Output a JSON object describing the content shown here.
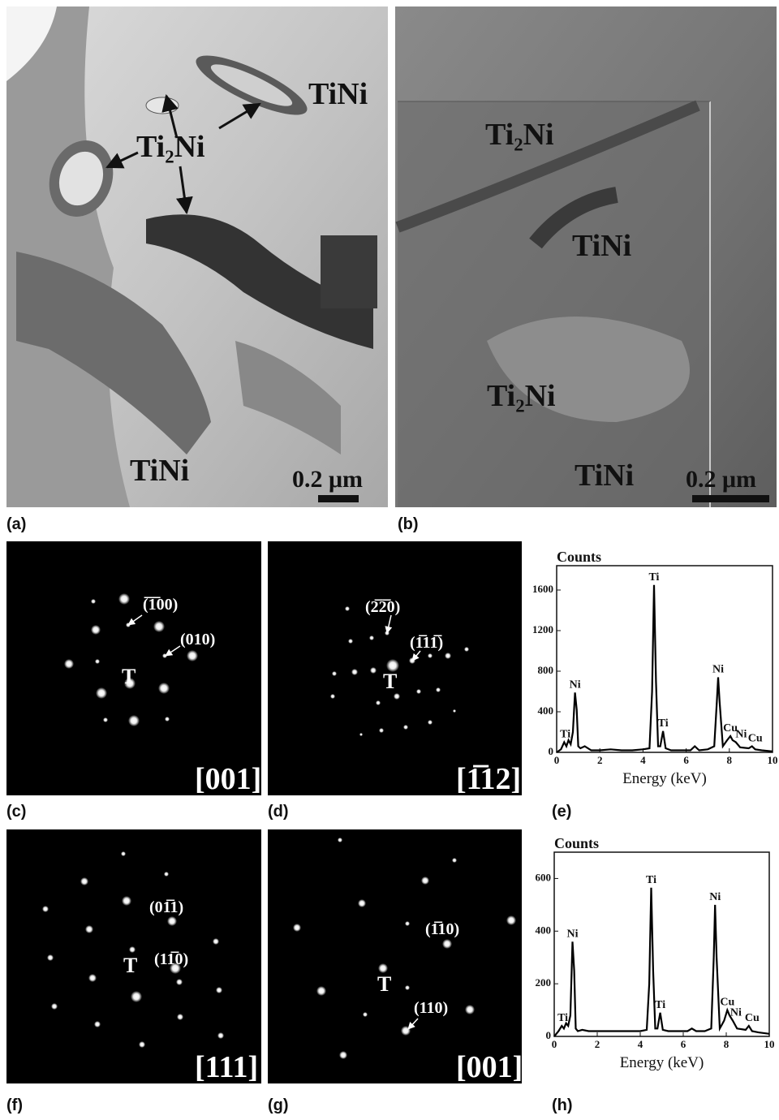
{
  "panels": {
    "a": {
      "label": "(a)",
      "texts": [
        "TiNi",
        "Ti₂Ni",
        "TiNi"
      ],
      "scale_bar": "0.2 μm"
    },
    "b": {
      "label": "(b)",
      "texts": [
        "Ti₂Ni",
        "TiNi",
        "Ti₂Ni",
        "TiNi"
      ],
      "scale_bar": "0.2 μm"
    },
    "c": {
      "label": "(c)",
      "spots": [
        "(̅1̅00)",
        "(010)"
      ],
      "center": "T",
      "zone": "[001]"
    },
    "d": {
      "label": "(d)",
      "spots": [
        "(2̅2̅0)",
        "(1̅11̅)"
      ],
      "center": "T",
      "zone": "[1̅12]"
    },
    "e": {
      "label": "(e)"
    },
    "f": {
      "label": "(f)",
      "spots": [
        "(01̅1)",
        "(11̅0)"
      ],
      "center": "T",
      "zone": "[111]"
    },
    "g": {
      "label": "(g)",
      "spots": [
        "(1̅10)",
        "(110)"
      ],
      "center": "T",
      "zone": "[001]"
    },
    "h": {
      "label": "(h)"
    }
  },
  "chart_data": [
    {
      "type": "line",
      "ylabel": "Counts",
      "xlabel": "Energy (keV)",
      "color": "#000000",
      "x": [
        0,
        0.2,
        0.35,
        0.45,
        0.55,
        0.65,
        0.75,
        0.85,
        0.93,
        1.0,
        1.1,
        1.3,
        1.6,
        2.0,
        2.5,
        3.0,
        3.5,
        4.0,
        4.3,
        4.42,
        4.51,
        4.6,
        4.7,
        4.8,
        4.93,
        5.05,
        5.3,
        5.8,
        6.2,
        6.4,
        6.6,
        7.0,
        7.3,
        7.42,
        7.48,
        7.55,
        7.7,
        7.9,
        8.05,
        8.15,
        8.3,
        8.5,
        8.9,
        9.05,
        9.2,
        9.5,
        10
      ],
      "values": [
        0,
        30,
        100,
        60,
        120,
        80,
        200,
        590,
        420,
        60,
        40,
        60,
        20,
        20,
        30,
        20,
        20,
        30,
        40,
        600,
        1650,
        700,
        60,
        60,
        210,
        40,
        20,
        20,
        20,
        60,
        20,
        30,
        60,
        500,
        740,
        500,
        60,
        120,
        160,
        120,
        100,
        50,
        40,
        60,
        30,
        20,
        10
      ],
      "xlim": [
        0,
        10
      ],
      "xticks": [
        0,
        2,
        4,
        6,
        8,
        10
      ],
      "ylim": [
        0,
        1840
      ],
      "yticks": [
        0,
        400,
        800,
        1200,
        1600
      ],
      "annotations": [
        {
          "text": "Ti",
          "x": 0.4,
          "y": 100
        },
        {
          "text": "Ni",
          "x": 0.85,
          "y": 590
        },
        {
          "text": "Ti",
          "x": 4.51,
          "y": 1650
        },
        {
          "text": "Ti",
          "x": 4.93,
          "y": 210
        },
        {
          "text": "Ni",
          "x": 7.48,
          "y": 740
        },
        {
          "text": "Cu",
          "x": 8.05,
          "y": 160
        },
        {
          "text": "Ni",
          "x": 8.55,
          "y": 100
        },
        {
          "text": "Cu",
          "x": 9.2,
          "y": 60
        }
      ]
    },
    {
      "type": "line",
      "ylabel": "Counts",
      "xlabel": "Energy (keV)",
      "color": "#000000",
      "x": [
        0,
        0.2,
        0.35,
        0.45,
        0.55,
        0.65,
        0.75,
        0.85,
        0.93,
        1.0,
        1.1,
        1.3,
        1.6,
        2.0,
        2.5,
        3.0,
        3.5,
        4.0,
        4.3,
        4.42,
        4.51,
        4.6,
        4.7,
        4.8,
        4.93,
        5.05,
        5.3,
        5.8,
        6.2,
        6.4,
        6.6,
        7.0,
        7.3,
        7.42,
        7.48,
        7.55,
        7.7,
        7.9,
        8.05,
        8.15,
        8.3,
        8.5,
        8.9,
        9.05,
        9.2,
        9.5,
        10
      ],
      "values": [
        0,
        20,
        40,
        30,
        50,
        40,
        80,
        360,
        250,
        30,
        20,
        25,
        20,
        20,
        20,
        20,
        20,
        20,
        25,
        200,
        565,
        250,
        30,
        30,
        90,
        25,
        20,
        20,
        20,
        30,
        20,
        20,
        30,
        300,
        500,
        300,
        30,
        60,
        100,
        80,
        60,
        30,
        25,
        40,
        20,
        15,
        10
      ],
      "xlim": [
        0,
        10
      ],
      "xticks": [
        0,
        2,
        4,
        6,
        8,
        10
      ],
      "ylim": [
        0,
        700
      ],
      "yticks": [
        0,
        200,
        400,
        600
      ],
      "annotations": [
        {
          "text": "Ti",
          "x": 0.4,
          "y": 40
        },
        {
          "text": "Ni",
          "x": 0.85,
          "y": 360
        },
        {
          "text": "Ti",
          "x": 4.51,
          "y": 565
        },
        {
          "text": "Ti",
          "x": 4.93,
          "y": 90
        },
        {
          "text": "Ni",
          "x": 7.48,
          "y": 500
        },
        {
          "text": "Cu",
          "x": 8.05,
          "y": 100
        },
        {
          "text": "Ni",
          "x": 8.45,
          "y": 60
        },
        {
          "text": "Cu",
          "x": 9.2,
          "y": 40
        }
      ]
    }
  ]
}
